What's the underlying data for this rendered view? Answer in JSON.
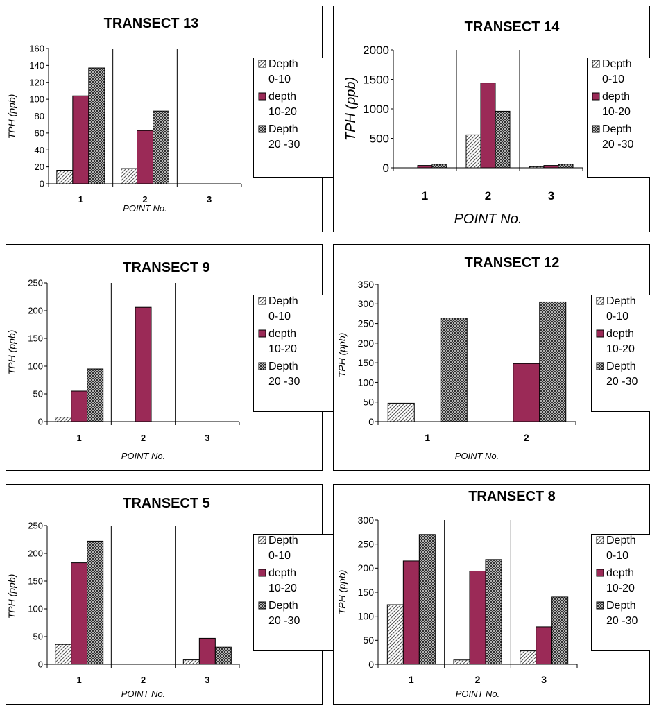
{
  "legend_labels": {
    "line1": [
      "Depth",
      "depth",
      "Depth"
    ],
    "line2": [
      "0-10",
      "10-20",
      "20 -30"
    ]
  },
  "colors": {
    "depth_0_10": "hatched-white",
    "depth_10_20": "#9b2a57",
    "depth_20_30": "crosshatch-dark"
  },
  "chart_data": [
    {
      "type": "bar",
      "title": "TRANSECT 13",
      "xlabel": "POINT No.",
      "ylabel": "TPH (ppb)",
      "categories": [
        "1",
        "2",
        "3"
      ],
      "yticks": [
        "0",
        "20",
        "40",
        "60",
        "80",
        "100",
        "120",
        "140",
        "160"
      ],
      "ylim": [
        0,
        160
      ],
      "series": [
        {
          "name": "Depth 0-10",
          "values": [
            16,
            18,
            0
          ]
        },
        {
          "name": "depth 10-20",
          "values": [
            104,
            63,
            0
          ]
        },
        {
          "name": "Depth 20 -30",
          "values": [
            137,
            86,
            0
          ]
        }
      ]
    },
    {
      "type": "bar",
      "title": "TRANSECT 14",
      "xlabel": "POINT No.",
      "ylabel": "TPH (ppb)",
      "categories": [
        "1",
        "2",
        "3"
      ],
      "yticks": [
        "0",
        "500",
        "1000",
        "1500",
        "2000"
      ],
      "ylim": [
        0,
        2000
      ],
      "series": [
        {
          "name": "Depth 0-10",
          "values": [
            0,
            560,
            20
          ]
        },
        {
          "name": "depth 10-20",
          "values": [
            40,
            1440,
            40
          ]
        },
        {
          "name": "Depth 20 -30",
          "values": [
            60,
            960,
            60
          ]
        }
      ]
    },
    {
      "type": "bar",
      "title": "TRANSECT 9",
      "xlabel": "POINT No.",
      "ylabel": "TPH (ppb)",
      "categories": [
        "1",
        "2",
        "3"
      ],
      "yticks": [
        "0",
        "50",
        "100",
        "150",
        "200",
        "250"
      ],
      "ylim": [
        0,
        250
      ],
      "series": [
        {
          "name": "Depth 0-10",
          "values": [
            8,
            0,
            0
          ]
        },
        {
          "name": "depth 10-20",
          "values": [
            55,
            206,
            0
          ]
        },
        {
          "name": "Depth 20 -30",
          "values": [
            95,
            0,
            0
          ]
        }
      ]
    },
    {
      "type": "bar",
      "title": "TRANSECT 12",
      "xlabel": "POINT No.",
      "ylabel": "TPH (ppb)",
      "categories": [
        "1",
        "2"
      ],
      "yticks": [
        "0",
        "50",
        "100",
        "150",
        "200",
        "250",
        "300",
        "350"
      ],
      "ylim": [
        0,
        350
      ],
      "series": [
        {
          "name": "Depth 0-10",
          "values": [
            47,
            0
          ]
        },
        {
          "name": "depth 10-20",
          "values": [
            0,
            148
          ]
        },
        {
          "name": "Depth 20 -30",
          "values": [
            264,
            305
          ]
        }
      ]
    },
    {
      "type": "bar",
      "title": "TRANSECT 5",
      "xlabel": "POINT No.",
      "ylabel": "TPH (ppb)",
      "categories": [
        "1",
        "2",
        "3"
      ],
      "yticks": [
        "0",
        "50",
        "100",
        "150",
        "200",
        "250"
      ],
      "ylim": [
        0,
        250
      ],
      "series": [
        {
          "name": "Depth 0-10",
          "values": [
            36,
            0,
            8
          ]
        },
        {
          "name": "depth 10-20",
          "values": [
            183,
            0,
            47
          ]
        },
        {
          "name": "Depth 20 -30",
          "values": [
            222,
            0,
            31
          ]
        }
      ]
    },
    {
      "type": "bar",
      "title": "TRANSECT 8",
      "xlabel": "POINT No.",
      "ylabel": "TPH (ppb)",
      "categories": [
        "1",
        "2",
        "3"
      ],
      "yticks": [
        "0",
        "50",
        "100",
        "150",
        "200",
        "250",
        "300"
      ],
      "ylim": [
        0,
        300
      ],
      "series": [
        {
          "name": "Depth 0-10",
          "values": [
            124,
            9,
            28
          ]
        },
        {
          "name": "depth 10-20",
          "values": [
            215,
            194,
            78
          ]
        },
        {
          "name": "Depth 20 -30",
          "values": [
            270,
            218,
            140
          ]
        }
      ]
    }
  ]
}
